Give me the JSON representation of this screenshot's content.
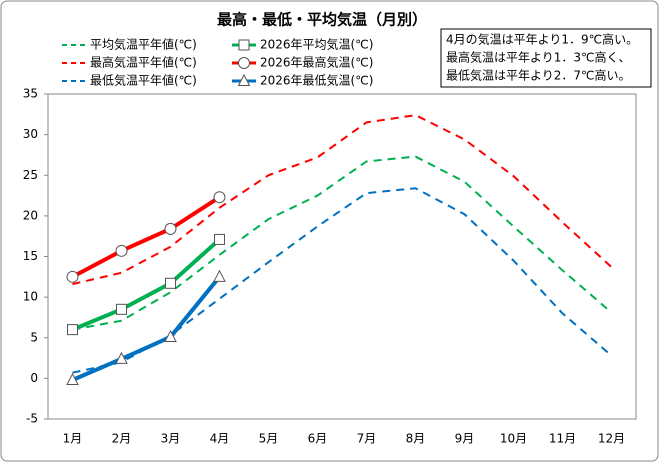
{
  "chart_data": {
    "type": "line",
    "title": "最高・最低・平均気温（月別）",
    "annotation": [
      "4月の気温は平年より1．9℃高い。",
      "最高気温は平年より1．3℃高く、",
      "最低気温は平年より2．7℃高い。"
    ],
    "categories": [
      "1月",
      "2月",
      "3月",
      "4月",
      "5月",
      "6月",
      "7月",
      "8月",
      "9月",
      "10月",
      "11月",
      "12月"
    ],
    "ylim": [
      -5,
      35
    ],
    "yticks": [
      -5,
      0,
      5,
      10,
      15,
      20,
      25,
      30,
      35
    ],
    "series": [
      {
        "name": "平均気温平年値(℃)",
        "color": "#00b050",
        "style": "dashed",
        "marker": "none",
        "values": [
          6.0,
          7.1,
          10.6,
          15.2,
          19.6,
          22.5,
          26.7,
          27.3,
          24.2,
          18.7,
          13.3,
          8.1
        ]
      },
      {
        "name": "2026年平均気温(℃)",
        "color": "#00b050",
        "style": "solid",
        "marker": "square",
        "values": [
          6.0,
          8.5,
          11.7,
          17.1,
          null,
          null,
          null,
          null,
          null,
          null,
          null,
          null
        ]
      },
      {
        "name": "最高気温平年値(℃)",
        "color": "#ff0000",
        "style": "dashed",
        "marker": "none",
        "values": [
          11.6,
          13.0,
          16.2,
          21.0,
          25.0,
          27.2,
          31.5,
          32.4,
          29.4,
          24.9,
          19.2,
          13.7
        ]
      },
      {
        "name": "2026年最高気温(℃)",
        "color": "#ff0000",
        "style": "solid",
        "marker": "circle",
        "values": [
          12.5,
          15.7,
          18.4,
          22.3,
          null,
          null,
          null,
          null,
          null,
          null,
          null,
          null
        ]
      },
      {
        "name": "最低気温平年値(℃)",
        "color": "#0070c0",
        "style": "dashed",
        "marker": "none",
        "values": [
          0.7,
          2.0,
          5.3,
          9.8,
          14.3,
          18.7,
          22.8,
          23.4,
          20.2,
          14.5,
          8.0,
          2.8
        ]
      },
      {
        "name": "2026年最低気温(℃)",
        "color": "#0070c0",
        "style": "solid",
        "marker": "triangle",
        "values": [
          -0.2,
          2.4,
          5.1,
          12.5,
          null,
          null,
          null,
          null,
          null,
          null,
          null,
          null
        ]
      }
    ]
  }
}
